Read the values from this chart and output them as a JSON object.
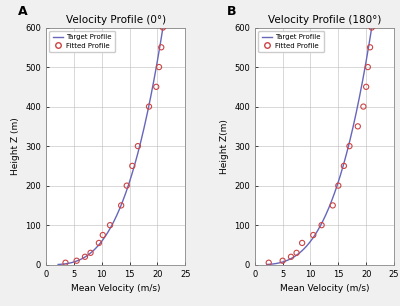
{
  "panel_A": {
    "title": "Velocity Profile (0°)",
    "label": "A",
    "xlabel": "Mean Velocity (m/s)",
    "ylabel": "Height Z (m)",
    "xlim": [
      0,
      25
    ],
    "ylim": [
      0,
      600
    ],
    "xticks": [
      0,
      5,
      10,
      15,
      20,
      25
    ],
    "yticks": [
      0,
      100,
      200,
      300,
      400,
      500,
      600
    ],
    "curve_alpha": 0.32,
    "fitted_points": [
      [
        3.5,
        5
      ],
      [
        5.5,
        10
      ],
      [
        7.0,
        20
      ],
      [
        8.0,
        30
      ],
      [
        9.5,
        55
      ],
      [
        10.2,
        75
      ],
      [
        11.5,
        100
      ],
      [
        13.5,
        150
      ],
      [
        14.5,
        200
      ],
      [
        15.5,
        250
      ],
      [
        16.5,
        300
      ],
      [
        18.5,
        400
      ],
      [
        19.8,
        450
      ],
      [
        20.3,
        500
      ],
      [
        20.7,
        550
      ],
      [
        21.0,
        600
      ]
    ]
  },
  "panel_B": {
    "title": "Velocity Profile (180°)",
    "label": "B",
    "xlabel": "Mean Velocity (m/s)",
    "ylabel": "Height Z(m)",
    "xlim": [
      0,
      25
    ],
    "ylim": [
      0,
      600
    ],
    "xticks": [
      0,
      5,
      10,
      15,
      20,
      25
    ],
    "yticks": [
      0,
      100,
      200,
      300,
      400,
      500,
      600
    ],
    "curve_alpha": 0.32,
    "fitted_points": [
      [
        2.5,
        5
      ],
      [
        5.0,
        10
      ],
      [
        6.5,
        20
      ],
      [
        7.5,
        30
      ],
      [
        8.5,
        55
      ],
      [
        10.5,
        75
      ],
      [
        12.0,
        100
      ],
      [
        14.0,
        150
      ],
      [
        15.0,
        200
      ],
      [
        16.0,
        250
      ],
      [
        17.0,
        300
      ],
      [
        18.5,
        350
      ],
      [
        19.5,
        400
      ],
      [
        20.0,
        450
      ],
      [
        20.3,
        500
      ],
      [
        20.7,
        550
      ],
      [
        21.0,
        600
      ]
    ]
  },
  "line_color": "#6666bb",
  "scatter_color": "#cc4444",
  "bg_color": "#ffffff",
  "grid_color": "#bbbbbb",
  "legend_target_label": "Target Profile",
  "legend_fitted_label": "Fitted Profile",
  "fig_bg_color": "#f0f0f0"
}
